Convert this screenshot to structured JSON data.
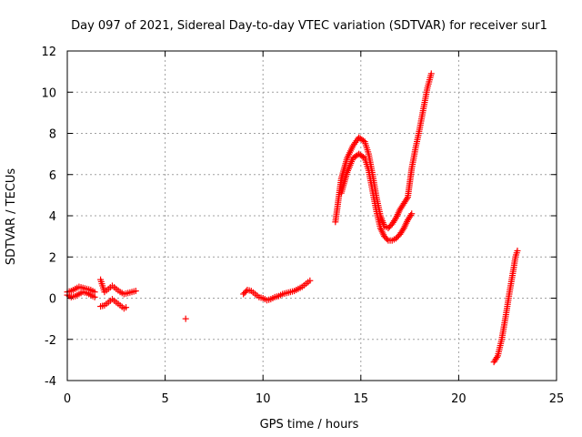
{
  "chart_data": {
    "type": "scatter",
    "title": "Day 097 of 2021, Sidereal Day-to-day VTEC variation (SDTVAR) for receiver sur1",
    "xlabel": "GPS time / hours",
    "ylabel": "SDTVAR / TECUs",
    "xlim": [
      0,
      25
    ],
    "ylim": [
      -4,
      12
    ],
    "xticks": [
      0,
      5,
      10,
      15,
      20,
      25
    ],
    "yticks": [
      -4,
      -2,
      0,
      2,
      4,
      6,
      8,
      10,
      12
    ],
    "grid": true,
    "marker": "+",
    "color": "#ff0000",
    "series": [
      {
        "name": "seg1_upper",
        "x": [
          0.0,
          0.2,
          0.4,
          0.6,
          0.8,
          1.0,
          1.2,
          1.4
        ],
        "y": [
          0.3,
          0.35,
          0.45,
          0.55,
          0.5,
          0.45,
          0.4,
          0.3
        ]
      },
      {
        "name": "seg1_lower",
        "x": [
          0.0,
          0.2,
          0.4,
          0.6,
          0.8,
          1.0,
          1.2,
          1.4
        ],
        "y": [
          0.15,
          0.05,
          0.1,
          0.2,
          0.3,
          0.25,
          0.15,
          0.05
        ]
      },
      {
        "name": "seg2_upper",
        "x": [
          1.7,
          1.9,
          2.1,
          2.3,
          2.5,
          2.7,
          2.9,
          3.1,
          3.3,
          3.5
        ],
        "y": [
          0.9,
          0.3,
          0.45,
          0.6,
          0.45,
          0.3,
          0.2,
          0.25,
          0.3,
          0.35
        ]
      },
      {
        "name": "seg2_lower",
        "x": [
          1.7,
          1.9,
          2.1,
          2.3,
          2.5,
          2.7,
          2.9,
          3.0
        ],
        "y": [
          -0.4,
          -0.35,
          -0.2,
          -0.05,
          -0.2,
          -0.35,
          -0.5,
          -0.45
        ]
      },
      {
        "name": "isolated",
        "x": [
          6.05
        ],
        "y": [
          -1.0
        ]
      },
      {
        "name": "seg3",
        "x": [
          9.0,
          9.2,
          9.4,
          9.6,
          9.8,
          10.0,
          10.2,
          10.4,
          10.6,
          10.8,
          11.0,
          11.2,
          11.4,
          11.6,
          11.8,
          12.0,
          12.2,
          12.4
        ],
        "y": [
          0.2,
          0.4,
          0.35,
          0.2,
          0.05,
          0.0,
          -0.1,
          -0.05,
          0.05,
          0.1,
          0.2,
          0.25,
          0.3,
          0.35,
          0.45,
          0.55,
          0.7,
          0.85
        ]
      },
      {
        "name": "seg4_upper",
        "x": [
          13.7,
          14.0,
          14.3,
          14.6,
          14.9,
          15.2,
          15.4,
          15.6,
          15.8,
          16.0,
          16.2,
          16.4,
          16.6,
          16.8,
          17.0,
          17.2,
          17.4,
          17.6,
          17.8,
          18.0,
          18.2,
          18.4,
          18.6
        ],
        "y": [
          3.7,
          5.8,
          6.8,
          7.4,
          7.8,
          7.6,
          7.0,
          6.0,
          4.9,
          4.0,
          3.5,
          3.4,
          3.6,
          3.9,
          4.3,
          4.6,
          4.9,
          6.3,
          7.3,
          8.2,
          9.2,
          10.2,
          10.9
        ]
      },
      {
        "name": "seg4_lower",
        "x": [
          14.0,
          14.3,
          14.6,
          14.9,
          15.2,
          15.4,
          15.6,
          15.8,
          16.0,
          16.2,
          16.4,
          16.6,
          16.8,
          17.0,
          17.2,
          17.4,
          17.6
        ],
        "y": [
          5.1,
          6.1,
          6.8,
          7.0,
          6.8,
          6.2,
          5.2,
          4.2,
          3.4,
          3.0,
          2.8,
          2.8,
          2.9,
          3.1,
          3.4,
          3.8,
          4.1
        ]
      },
      {
        "name": "seg5",
        "x": [
          21.8,
          22.0,
          22.2,
          22.4,
          22.6,
          22.8,
          22.9,
          23.0
        ],
        "y": [
          -3.1,
          -2.8,
          -2.0,
          -0.9,
          0.3,
          1.4,
          2.0,
          2.3
        ]
      }
    ]
  }
}
